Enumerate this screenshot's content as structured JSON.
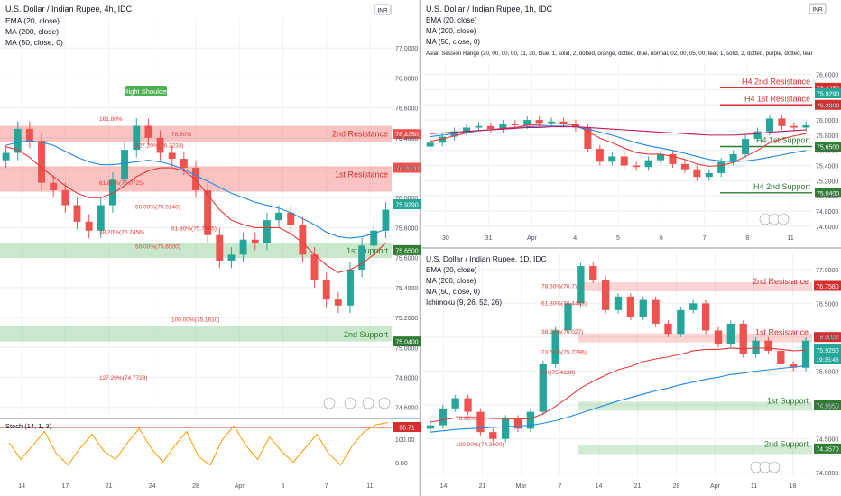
{
  "chart_data": [
    {
      "type": "line",
      "panel": "left-4h",
      "title": "U.S. Dollar / Indian Rupee, 4h, IDC",
      "indicators": [
        "EMA (20, close)",
        "MA (200, close)",
        "MA (50, close, 0)"
      ],
      "currency_badge": "INR",
      "x_ticks": [
        "14",
        "17",
        "21",
        "24",
        "28",
        "Apr",
        "5",
        "7",
        "11"
      ],
      "y_ticks": [
        "77.0000",
        "76.8000",
        "76.6000",
        "76.4000",
        "76.2000",
        "76.0000",
        "75.8000",
        "75.6000",
        "75.4000",
        "75.2000",
        "75.0000",
        "74.8000",
        "74.6000"
      ],
      "ylim": [
        74.55,
        77.2
      ],
      "zones": [
        {
          "label": "2nd Resistance",
          "price": "76.4250",
          "y_range": [
            76.37,
            76.48
          ]
        },
        {
          "label": "1st Resistance",
          "price": "76.2000",
          "y_range": [
            76.04,
            76.21
          ]
        },
        {
          "label": "1st Support",
          "price": "75.6500",
          "y_range": [
            75.6,
            75.7
          ]
        },
        {
          "label": "2nd Support",
          "price": "75.0400",
          "y_range": [
            75.04,
            75.14
          ]
        }
      ],
      "fib_labels": [
        "161.80%",
        "127.20%(76.3233)",
        "78.60%",
        "61.80%(76.0725)",
        "50.00%(75.9140)",
        "61.80%(75.7695)",
        "38.20%(75.7456)",
        "50.00%(75.6500)",
        "100.00%(75.1610)",
        "127.20%(74.7723)"
      ],
      "annotation": "Right Shoulder",
      "last_price": "75.9290",
      "close": [
        76.3,
        76.46,
        76.38,
        76.1,
        76.05,
        75.95,
        75.84,
        75.78,
        75.95,
        76.12,
        76.32,
        76.48,
        76.4,
        76.3,
        76.26,
        76.2,
        76.05,
        75.75,
        75.58,
        75.62,
        75.72,
        75.7,
        75.85,
        75.9,
        75.82,
        75.62,
        75.45,
        75.32,
        75.28,
        75.52,
        75.68,
        75.78,
        75.92
      ],
      "ema20": [
        76.34,
        76.32,
        76.27,
        76.2,
        76.14,
        76.08,
        76.03,
        76.0,
        76.0,
        76.03,
        76.08,
        76.14,
        76.18,
        76.2,
        76.2,
        76.18,
        76.12,
        76.02,
        75.92,
        75.85,
        75.82,
        75.8,
        75.8,
        75.8,
        75.76,
        75.7,
        75.62,
        75.55,
        75.5,
        75.52,
        75.56,
        75.62,
        75.7
      ],
      "ma50": [
        76.35,
        76.37,
        76.38,
        76.37,
        76.35,
        76.31,
        76.27,
        76.24,
        76.22,
        76.22,
        76.23,
        76.24,
        76.25,
        76.24,
        76.22,
        76.19,
        76.15,
        76.11,
        76.07,
        76.03,
        76.0,
        75.97,
        75.95,
        75.93,
        75.9,
        75.86,
        75.82,
        75.77,
        75.74,
        75.73,
        75.74,
        75.76,
        75.79
      ],
      "stoch_label": "Stoch (14, 1, 3)",
      "stoch_value": "96.71",
      "stoch_ticks": [
        "100.00",
        "0.00"
      ],
      "stoch": [
        60,
        30,
        55,
        80,
        40,
        20,
        50,
        75,
        45,
        30,
        60,
        85,
        50,
        25,
        55,
        80,
        35,
        20,
        65,
        90,
        55,
        30,
        70,
        45,
        25,
        50,
        75,
        40,
        20,
        55,
        80,
        92,
        96
      ]
    },
    {
      "type": "line",
      "panel": "top-right-1h",
      "title": "U.S. Dollar / Indian Rupee, 1h, IDC",
      "indicators": [
        "EMA (20, close)",
        "MA (200, close)",
        "MA (50, close, 0)",
        "Asian Session Range (20, 00, 00, 00, 11, 30, blue, 1, solid, 2, dotted, orange, dotted, blue, normal, 02, 00, 05, 00, teal, 1, solid, 2, dotted, purple, dotted, teal"
      ],
      "currency_badge": "INR",
      "x_ticks": [
        "30",
        "31",
        "Apr",
        "4",
        "5",
        "6",
        "7",
        "8",
        "11"
      ],
      "y_ticks": [
        "76.6000",
        "76.4000",
        "76.2000",
        "76.0000",
        "75.8000",
        "75.6000",
        "75.4000",
        "75.2000",
        "75.0000",
        "74.8000",
        "74.6000"
      ],
      "ylim": [
        74.55,
        76.75
      ],
      "levels": [
        {
          "label": "H4 2nd Resistance",
          "price": "76.4250",
          "y": 76.425
        },
        {
          "label": "H4 1st Resistance",
          "price": "76.2000",
          "y": 76.2
        },
        {
          "label": "H4 1st Support",
          "price": "75.6500",
          "y": 75.65
        },
        {
          "label": "H4 2nd Support",
          "price": "75.0400",
          "y": 75.04
        }
      ],
      "last_price": "75.9290",
      "close": [
        75.7,
        75.78,
        75.85,
        75.9,
        75.92,
        75.88,
        75.95,
        75.93,
        76.0,
        75.96,
        75.98,
        75.95,
        75.9,
        75.62,
        75.45,
        75.52,
        75.4,
        75.38,
        75.47,
        75.55,
        75.42,
        75.35,
        75.25,
        75.3,
        75.45,
        75.55,
        75.75,
        75.85,
        76.02,
        75.92,
        75.9,
        75.93
      ],
      "ema20": [
        75.72,
        75.75,
        75.79,
        75.83,
        75.86,
        75.87,
        75.89,
        75.9,
        75.93,
        75.94,
        75.95,
        75.95,
        75.93,
        75.85,
        75.76,
        75.7,
        75.63,
        75.57,
        75.55,
        75.55,
        75.52,
        75.48,
        75.42,
        75.39,
        75.4,
        75.44,
        75.52,
        75.6,
        75.7,
        75.75,
        75.79,
        75.82
      ],
      "ma200": [
        75.82,
        75.83,
        75.84,
        75.85,
        75.86,
        75.87,
        75.88,
        75.89,
        75.9,
        75.9,
        75.91,
        75.91,
        75.91,
        75.9,
        75.89,
        75.88,
        75.87,
        75.86,
        75.85,
        75.84,
        75.83,
        75.82,
        75.81,
        75.8,
        75.8,
        75.8,
        75.81,
        75.82,
        75.84,
        75.85,
        75.86,
        75.87
      ],
      "ma50": [
        75.78,
        75.8,
        75.82,
        75.84,
        75.86,
        75.87,
        75.88,
        75.89,
        75.91,
        75.92,
        75.92,
        75.92,
        75.91,
        75.88,
        75.84,
        75.8,
        75.75,
        75.7,
        75.66,
        75.63,
        75.6,
        75.56,
        75.52,
        75.48,
        75.46,
        75.45,
        75.46,
        75.48,
        75.51,
        75.54,
        75.57,
        75.6
      ]
    },
    {
      "type": "line",
      "panel": "bottom-right-1d",
      "title": "U.S. Dollar / Indian Rupee, 1D, IDC",
      "indicators": [
        "EMA (20, close)",
        "MA (200, close)",
        "MA (50, close, 0)",
        "Ichimoku (9, 26, 52, 26)"
      ],
      "x_ticks": [
        "14",
        "21",
        "Mar",
        "7",
        "14",
        "21",
        "28",
        "Apr",
        "11",
        "18"
      ],
      "y_ticks": [
        "77.0000",
        "76.5000",
        "76.0000",
        "75.5000",
        "75.0000",
        "74.5000",
        "74.0000"
      ],
      "ylim": [
        73.95,
        77.25
      ],
      "zones": [
        {
          "label": "2nd Resistance",
          "price": "76.7580",
          "y": 76.758
        },
        {
          "label": "1st Resistance",
          "price": "76.0033",
          "y": 76.0033
        },
        {
          "label": "1st Support",
          "price": "74.9950",
          "y": 74.995
        },
        {
          "label": "2nd Support",
          "price": "74.3570",
          "y": 74.357
        }
      ],
      "fib_labels": [
        "78.60%(76.7)",
        "61.80%(76.4443)",
        "38.20%(76.027)",
        "23.60%(75.7296)",
        "0%(75.4238)",
        "78.60%",
        "100.00%(74.3600)"
      ],
      "last_price": "75.9290",
      "countdown": "19:35:46",
      "close": [
        74.7,
        74.95,
        75.1,
        74.9,
        74.6,
        74.5,
        74.8,
        74.65,
        74.9,
        75.6,
        76.1,
        76.5,
        77.05,
        76.85,
        76.4,
        76.6,
        76.3,
        76.55,
        76.2,
        76.05,
        76.4,
        76.5,
        76.1,
        75.9,
        76.2,
        75.75,
        75.95,
        75.8,
        75.6,
        75.55,
        75.95
      ],
      "ema20": [
        74.75,
        74.78,
        74.81,
        74.82,
        74.81,
        74.8,
        74.8,
        74.79,
        74.8,
        74.87,
        74.98,
        75.11,
        75.25,
        75.35,
        75.44,
        75.52,
        75.57,
        75.64,
        75.68,
        75.71,
        75.75,
        75.8,
        75.82,
        75.82,
        75.84,
        75.83,
        75.84,
        75.84,
        75.82,
        75.8,
        75.81
      ],
      "ma50": [
        74.6,
        74.62,
        74.64,
        74.65,
        74.66,
        74.67,
        74.68,
        74.69,
        74.7,
        74.73,
        74.77,
        74.82,
        74.88,
        74.94,
        75.0,
        75.06,
        75.11,
        75.16,
        75.21,
        75.25,
        75.3,
        75.34,
        75.38,
        75.41,
        75.45,
        75.47,
        75.5,
        75.52,
        75.54,
        75.56,
        75.58
      ]
    }
  ]
}
